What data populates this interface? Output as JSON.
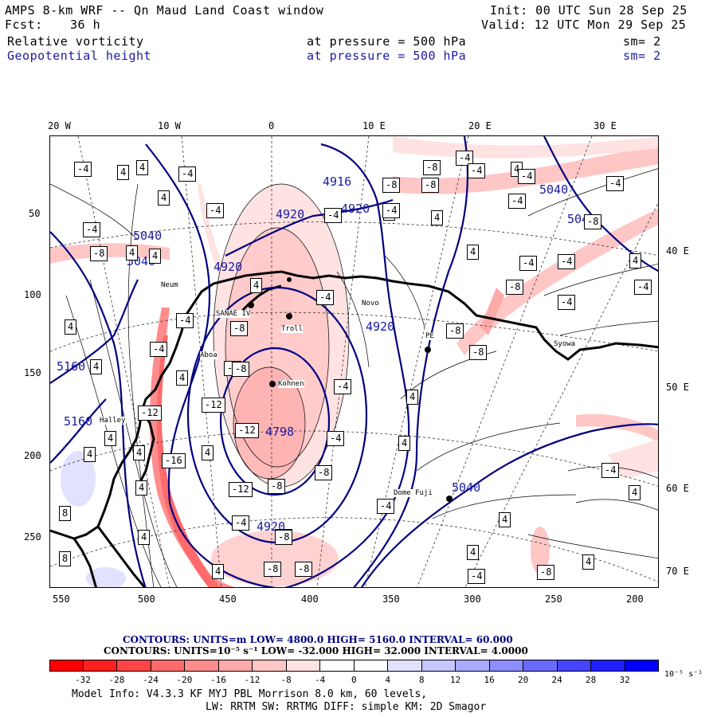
{
  "header": {
    "title": "AMPS 8-km WRF -- Qn Maud Land Coast window",
    "fcst_label": "Fcst:",
    "fcst_value": "36 h",
    "init": "Init: 00 UTC Sun 28 Sep 25",
    "valid": "Valid: 12 UTC Mon 29 Sep 25",
    "field1_name": "Relative vorticity",
    "field1_level": "at pressure =  500 hPa",
    "field1_sm": "sm= 2",
    "field2_name": "Geopotential height",
    "field2_level": "at pressure =  500 hPa",
    "field2_sm": "sm= 2"
  },
  "lon_top": [
    "20 W",
    "10 W",
    "0",
    "10 E",
    "20 E",
    "30 E"
  ],
  "lat_right": [
    "40 E",
    "50 E",
    "60 E",
    "70 E"
  ],
  "y_ticks": [
    "50",
    "100",
    "150",
    "200",
    "250"
  ],
  "x_ticks": [
    "550",
    "500",
    "450",
    "400",
    "350",
    "300",
    "250",
    "200"
  ],
  "stations": [
    "Neum",
    "SANAE IV",
    "Troll",
    "Novo",
    "PE",
    "Syowa",
    "Aboa",
    "Kohnen",
    "Halley",
    "Dome Fuji"
  ],
  "height_labels": [
    "4916",
    "4920",
    "4920",
    "4920",
    "4920",
    "4920",
    "5040",
    "5040",
    "5040",
    "5040",
    "5040",
    "5160",
    "5160",
    "4798"
  ],
  "vort_labels": [
    "-4",
    "4",
    "4",
    "-4",
    "-8",
    "-8",
    "-4",
    "-4",
    "4",
    "-4",
    "-8",
    "-4",
    "4",
    "-4",
    "-4",
    "4",
    "-4",
    "4",
    "-4",
    "-4",
    "-8",
    "4",
    "-4",
    "-8",
    "4",
    "4",
    "-8",
    "-4",
    "-4",
    "4",
    "-8",
    "-8",
    "-4",
    "4",
    "-4",
    "-4",
    "-4",
    "4",
    "-8",
    "-8",
    "-12",
    "4",
    "4",
    "-4",
    "-12",
    "-8",
    "-16",
    "4",
    "4",
    "-12",
    "4",
    "-8",
    "4",
    "-4",
    "4",
    "-12",
    "-8",
    "-8",
    "4",
    "-4",
    "4",
    "-4",
    "4",
    "8",
    "4",
    "8",
    "-4",
    "-8",
    "4",
    "4",
    "-4",
    "4",
    "-8",
    "4",
    "-8",
    "-8"
  ],
  "legend": {
    "contours1": "CONTOURS:  UNITS=m  LOW=  4800.0      HIGH=  5160.0       INTERVAL=   60.000",
    "contours2": "CONTOURS:  UNITS=10⁻⁵ s⁻¹  LOW=  -32.000         HIGH=  32.000        INTERVAL=   4.0000",
    "cbar_labels": [
      "-32",
      "-28",
      "-24",
      "-20",
      "-16",
      "-12",
      "-8",
      "-4",
      "0",
      "4",
      "8",
      "12",
      "16",
      "20",
      "24",
      "28",
      "32"
    ],
    "cbar_unit": "10⁻⁵ s⁻¹",
    "cbar_colors": [
      "#ff0000",
      "#ff2020",
      "#ff4545",
      "#ff6a6a",
      "#ff8d8d",
      "#ffaaaa",
      "#ffc6c6",
      "#ffe2e2",
      "#ffffff",
      "#ffffff",
      "#e2e2ff",
      "#c6c6ff",
      "#aaaaff",
      "#8d8dff",
      "#6a6aff",
      "#4545ff",
      "#2020ff",
      "#0000ff"
    ]
  },
  "footer": {
    "model_info": "Model Info: V4.3.3   KF      MYJ PBL  Morrison            8.0 km,  60 levels,",
    "model_info2": "LW: RRTM SW: RRTMG   DIFF: simple KM: 2D Smagor"
  }
}
